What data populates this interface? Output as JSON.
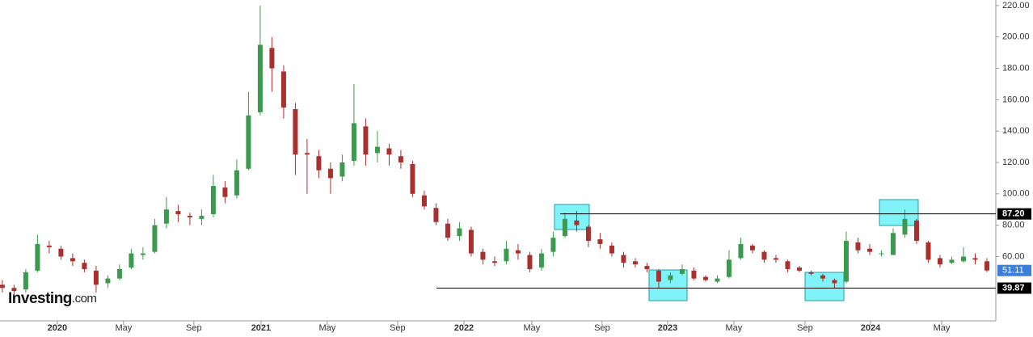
{
  "chart_data": {
    "type": "candlestick",
    "open": [
      42,
      40,
      39,
      51,
      67,
      65,
      59,
      56,
      51,
      43,
      46,
      53,
      61,
      63,
      81,
      89,
      86,
      84,
      87,
      104,
      99,
      116,
      152,
      193,
      178,
      154,
      126,
      124,
      116,
      111,
      121,
      143,
      126,
      129,
      124,
      119,
      99,
      91,
      81,
      73,
      77,
      63,
      57,
      57,
      64,
      61,
      53,
      63,
      73,
      83,
      79,
      71,
      67,
      61,
      57,
      54,
      51,
      45,
      49,
      51,
      47,
      44,
      47,
      59,
      67,
      63,
      59,
      57,
      53,
      50,
      48,
      45,
      44,
      69,
      65,
      62,
      61,
      74,
      83,
      69,
      59,
      56,
      57,
      59,
      57
    ],
    "high": [
      45,
      42,
      52,
      74,
      70,
      67,
      62,
      58,
      54,
      48,
      55,
      65,
      66,
      84,
      98,
      93,
      88,
      90,
      112,
      108,
      122,
      165,
      220,
      200,
      182,
      158,
      135,
      128,
      120,
      125,
      170,
      148,
      140,
      132,
      128,
      121,
      102,
      94,
      84,
      82,
      79,
      65,
      60,
      70,
      68,
      63,
      65,
      76,
      88,
      89,
      80,
      75,
      69,
      63,
      59,
      56,
      52,
      50,
      55,
      53,
      48,
      48,
      64,
      72,
      68,
      64,
      61,
      58,
      54,
      51,
      49,
      46,
      76,
      72,
      68,
      64,
      78,
      90,
      84,
      70,
      61,
      60,
      66,
      62,
      59
    ],
    "low": [
      37,
      35,
      37,
      50,
      62,
      58,
      54,
      50,
      37,
      40,
      45,
      52,
      58,
      62,
      78,
      82,
      80,
      80,
      85,
      94,
      97,
      115,
      150,
      165,
      148,
      112,
      100,
      110,
      100,
      108,
      118,
      118,
      120,
      118,
      116,
      98,
      90,
      80,
      70,
      70,
      60,
      55,
      54,
      55,
      58,
      50,
      51,
      60,
      72,
      76,
      66,
      65,
      60,
      53,
      53,
      50,
      40,
      43,
      48,
      45,
      44,
      43,
      46,
      58,
      62,
      56,
      56,
      50,
      50,
      48,
      44,
      40,
      43,
      62,
      61,
      60,
      61,
      72,
      68,
      56,
      53,
      55,
      56,
      55,
      50
    ],
    "close": [
      40,
      38,
      50,
      68,
      66,
      60,
      57,
      52,
      42,
      46,
      52,
      62,
      62,
      80,
      90,
      87,
      85,
      86,
      105,
      98,
      115,
      150,
      195,
      180,
      155,
      125,
      125,
      115,
      110,
      120,
      145,
      125,
      130,
      125,
      120,
      100,
      92,
      82,
      72,
      78,
      62,
      58,
      56,
      65,
      62,
      52,
      62,
      72,
      84,
      80,
      70,
      68,
      62,
      56,
      55,
      52,
      44,
      48,
      52,
      46,
      45,
      46,
      58,
      68,
      64,
      58,
      58,
      52,
      51,
      49,
      46,
      43,
      70,
      64,
      63,
      62,
      75,
      84,
      70,
      58,
      55,
      58,
      60,
      58,
      51.11
    ],
    "up_color": "#3c9a4e",
    "down_color": "#a8302f",
    "xlim": [
      -0.2,
      84.76
    ],
    "xticks": [
      {
        "value": 4.69,
        "label": "2020"
      },
      {
        "value": 10.34,
        "label": "May"
      },
      {
        "value": 16.34,
        "label": "Sep"
      },
      {
        "value": 22.07,
        "label": "2021"
      },
      {
        "value": 27.72,
        "label": "May"
      },
      {
        "value": 33.72,
        "label": "Sep"
      },
      {
        "value": 39.38,
        "label": "2022"
      },
      {
        "value": 45.17,
        "label": "May"
      },
      {
        "value": 51.17,
        "label": "Sep"
      },
      {
        "value": 56.76,
        "label": "2023"
      },
      {
        "value": 62.41,
        "label": "May"
      },
      {
        "value": 68.48,
        "label": "Sep"
      },
      {
        "value": 74.07,
        "label": "2024"
      },
      {
        "value": 80.14,
        "label": "May"
      }
    ],
    "ylim": [
      18.5,
      221.5
    ],
    "yticks": [
      {
        "value": 60,
        "label": "60.00"
      },
      {
        "value": 80,
        "label": "80.00"
      },
      {
        "value": 100,
        "label": "100.00"
      },
      {
        "value": 120,
        "label": "120.00"
      },
      {
        "value": 140,
        "label": "140.00"
      },
      {
        "value": 160,
        "label": "160.00"
      },
      {
        "value": 180,
        "label": "180.00"
      },
      {
        "value": 200,
        "label": "200.00"
      },
      {
        "value": 220,
        "label": "220.00"
      }
    ],
    "levels": [
      {
        "value": 87.2,
        "label": "87.20",
        "start": 47.6
      },
      {
        "value": 39.87,
        "label": "39.87",
        "start": 37.03
      }
    ],
    "last_price": {
      "value": 51.11,
      "label": "51.11"
    },
    "watermark": [
      "Investing",
      ".com"
    ]
  }
}
